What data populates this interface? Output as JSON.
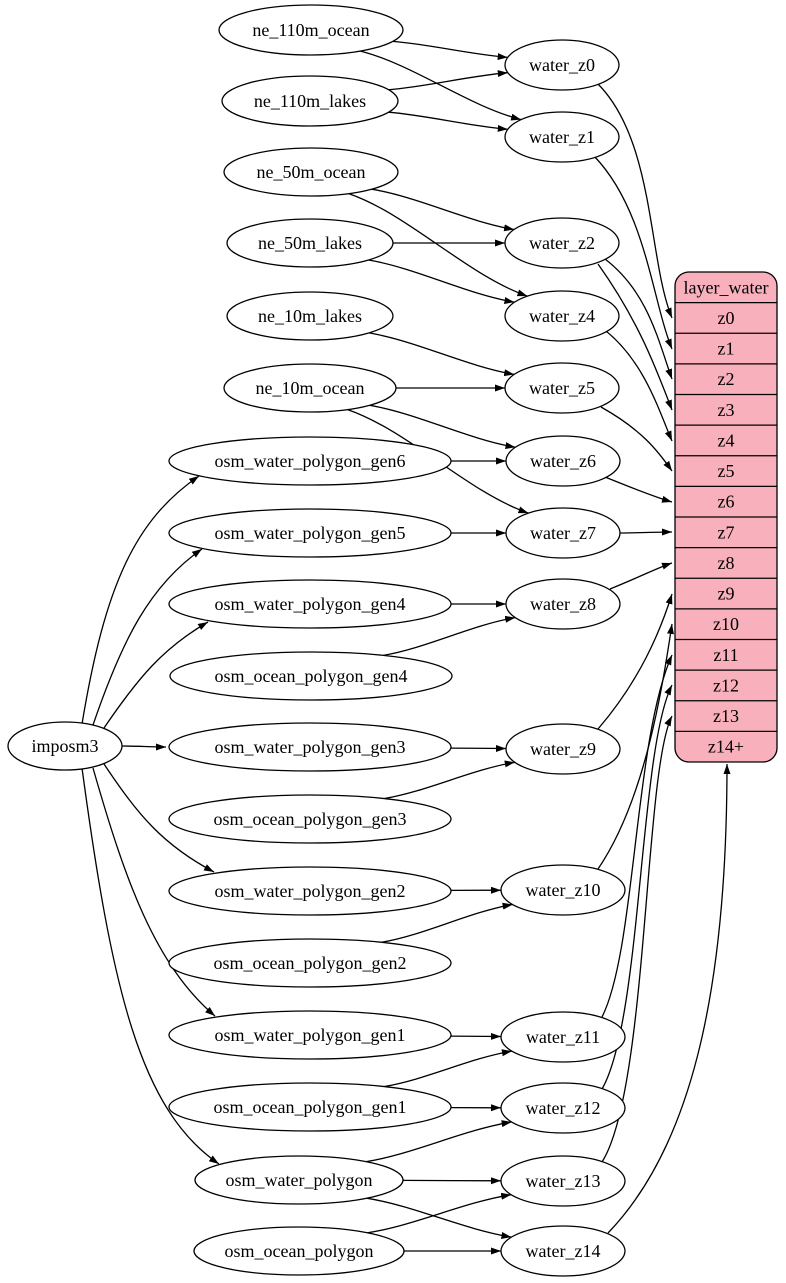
{
  "diagram": {
    "kind": "etl-graph",
    "colors": {
      "record_fill": "#f8b0bc",
      "node_fill": "#ffffff",
      "stroke": "#000000",
      "background": "#ffffff"
    },
    "nodes": [
      {
        "id": "imposm3",
        "label": "imposm3",
        "type": "importer"
      },
      {
        "id": "ne_110m_ocean",
        "label": "ne_110m_ocean",
        "type": "source"
      },
      {
        "id": "ne_110m_lakes",
        "label": "ne_110m_lakes",
        "type": "source"
      },
      {
        "id": "ne_50m_ocean",
        "label": "ne_50m_ocean",
        "type": "source"
      },
      {
        "id": "ne_50m_lakes",
        "label": "ne_50m_lakes",
        "type": "source"
      },
      {
        "id": "ne_10m_lakes",
        "label": "ne_10m_lakes",
        "type": "source"
      },
      {
        "id": "ne_10m_ocean",
        "label": "ne_10m_ocean",
        "type": "source"
      },
      {
        "id": "osm_water_polygon_gen6",
        "label": "osm_water_polygon_gen6",
        "type": "source"
      },
      {
        "id": "osm_water_polygon_gen5",
        "label": "osm_water_polygon_gen5",
        "type": "source"
      },
      {
        "id": "osm_water_polygon_gen4",
        "label": "osm_water_polygon_gen4",
        "type": "source"
      },
      {
        "id": "osm_ocean_polygon_gen4",
        "label": "osm_ocean_polygon_gen4",
        "type": "source"
      },
      {
        "id": "osm_water_polygon_gen3",
        "label": "osm_water_polygon_gen3",
        "type": "source"
      },
      {
        "id": "osm_ocean_polygon_gen3",
        "label": "osm_ocean_polygon_gen3",
        "type": "source"
      },
      {
        "id": "osm_water_polygon_gen2",
        "label": "osm_water_polygon_gen2",
        "type": "source"
      },
      {
        "id": "osm_ocean_polygon_gen2",
        "label": "osm_ocean_polygon_gen2",
        "type": "source"
      },
      {
        "id": "osm_water_polygon_gen1",
        "label": "osm_water_polygon_gen1",
        "type": "source"
      },
      {
        "id": "osm_ocean_polygon_gen1",
        "label": "osm_ocean_polygon_gen1",
        "type": "source"
      },
      {
        "id": "osm_water_polygon",
        "label": "osm_water_polygon",
        "type": "source"
      },
      {
        "id": "osm_ocean_polygon",
        "label": "osm_ocean_polygon",
        "type": "source"
      },
      {
        "id": "water_z0",
        "label": "water_z0",
        "type": "view"
      },
      {
        "id": "water_z1",
        "label": "water_z1",
        "type": "view"
      },
      {
        "id": "water_z2",
        "label": "water_z2",
        "type": "view"
      },
      {
        "id": "water_z4",
        "label": "water_z4",
        "type": "view"
      },
      {
        "id": "water_z5",
        "label": "water_z5",
        "type": "view"
      },
      {
        "id": "water_z6",
        "label": "water_z6",
        "type": "view"
      },
      {
        "id": "water_z7",
        "label": "water_z7",
        "type": "view"
      },
      {
        "id": "water_z8",
        "label": "water_z8",
        "type": "view"
      },
      {
        "id": "water_z9",
        "label": "water_z9",
        "type": "view"
      },
      {
        "id": "water_z10",
        "label": "water_z10",
        "type": "view"
      },
      {
        "id": "water_z11",
        "label": "water_z11",
        "type": "view"
      },
      {
        "id": "water_z12",
        "label": "water_z12",
        "type": "view"
      },
      {
        "id": "water_z13",
        "label": "water_z13",
        "type": "view"
      },
      {
        "id": "water_z14",
        "label": "water_z14",
        "type": "view"
      }
    ],
    "record": {
      "id": "layer_water",
      "title": "layer_water",
      "rows": [
        "z0",
        "z1",
        "z2",
        "z3",
        "z4",
        "z5",
        "z6",
        "z7",
        "z8",
        "z9",
        "z10",
        "z11",
        "z12",
        "z13",
        "z14+"
      ]
    },
    "edges": [
      {
        "from": "ne_110m_ocean",
        "to": "water_z0"
      },
      {
        "from": "ne_110m_ocean",
        "to": "water_z1"
      },
      {
        "from": "ne_110m_lakes",
        "to": "water_z0"
      },
      {
        "from": "ne_110m_lakes",
        "to": "water_z1"
      },
      {
        "from": "ne_50m_ocean",
        "to": "water_z2"
      },
      {
        "from": "ne_50m_ocean",
        "to": "water_z4"
      },
      {
        "from": "ne_50m_lakes",
        "to": "water_z2"
      },
      {
        "from": "ne_50m_lakes",
        "to": "water_z4"
      },
      {
        "from": "ne_10m_lakes",
        "to": "water_z5"
      },
      {
        "from": "ne_10m_ocean",
        "to": "water_z5"
      },
      {
        "from": "ne_10m_ocean",
        "to": "water_z6"
      },
      {
        "from": "ne_10m_ocean",
        "to": "water_z7"
      },
      {
        "from": "osm_water_polygon_gen6",
        "to": "water_z6"
      },
      {
        "from": "osm_water_polygon_gen5",
        "to": "water_z7"
      },
      {
        "from": "osm_water_polygon_gen4",
        "to": "water_z8"
      },
      {
        "from": "osm_ocean_polygon_gen4",
        "to": "water_z8"
      },
      {
        "from": "osm_water_polygon_gen3",
        "to": "water_z9"
      },
      {
        "from": "osm_ocean_polygon_gen3",
        "to": "water_z9"
      },
      {
        "from": "osm_water_polygon_gen2",
        "to": "water_z10"
      },
      {
        "from": "osm_ocean_polygon_gen2",
        "to": "water_z10"
      },
      {
        "from": "osm_water_polygon_gen1",
        "to": "water_z11"
      },
      {
        "from": "osm_ocean_polygon_gen1",
        "to": "water_z11"
      },
      {
        "from": "osm_ocean_polygon_gen1",
        "to": "water_z12"
      },
      {
        "from": "osm_water_polygon",
        "to": "water_z12"
      },
      {
        "from": "osm_water_polygon",
        "to": "water_z13"
      },
      {
        "from": "osm_water_polygon",
        "to": "water_z14"
      },
      {
        "from": "osm_ocean_polygon",
        "to": "water_z13"
      },
      {
        "from": "osm_ocean_polygon",
        "to": "water_z14"
      },
      {
        "from": "imposm3",
        "to": "osm_water_polygon_gen6"
      },
      {
        "from": "imposm3",
        "to": "osm_water_polygon_gen5"
      },
      {
        "from": "imposm3",
        "to": "osm_water_polygon_gen4"
      },
      {
        "from": "imposm3",
        "to": "osm_water_polygon_gen3"
      },
      {
        "from": "imposm3",
        "to": "osm_water_polygon_gen2"
      },
      {
        "from": "imposm3",
        "to": "osm_water_polygon_gen1"
      },
      {
        "from": "imposm3",
        "to": "osm_water_polygon"
      },
      {
        "from": "water_z0",
        "to": "layer_water:z0"
      },
      {
        "from": "water_z1",
        "to": "layer_water:z1"
      },
      {
        "from": "water_z2",
        "to": "layer_water:z2"
      },
      {
        "from": "water_z2",
        "to": "layer_water:z3"
      },
      {
        "from": "water_z4",
        "to": "layer_water:z4"
      },
      {
        "from": "water_z5",
        "to": "layer_water:z5"
      },
      {
        "from": "water_z6",
        "to": "layer_water:z6"
      },
      {
        "from": "water_z7",
        "to": "layer_water:z7"
      },
      {
        "from": "water_z8",
        "to": "layer_water:z8"
      },
      {
        "from": "water_z9",
        "to": "layer_water:z9"
      },
      {
        "from": "water_z10",
        "to": "layer_water:z10"
      },
      {
        "from": "water_z11",
        "to": "layer_water:z11"
      },
      {
        "from": "water_z12",
        "to": "layer_water:z12"
      },
      {
        "from": "water_z13",
        "to": "layer_water:z13"
      },
      {
        "from": "water_z14",
        "to": "layer_water:z14+"
      }
    ]
  }
}
